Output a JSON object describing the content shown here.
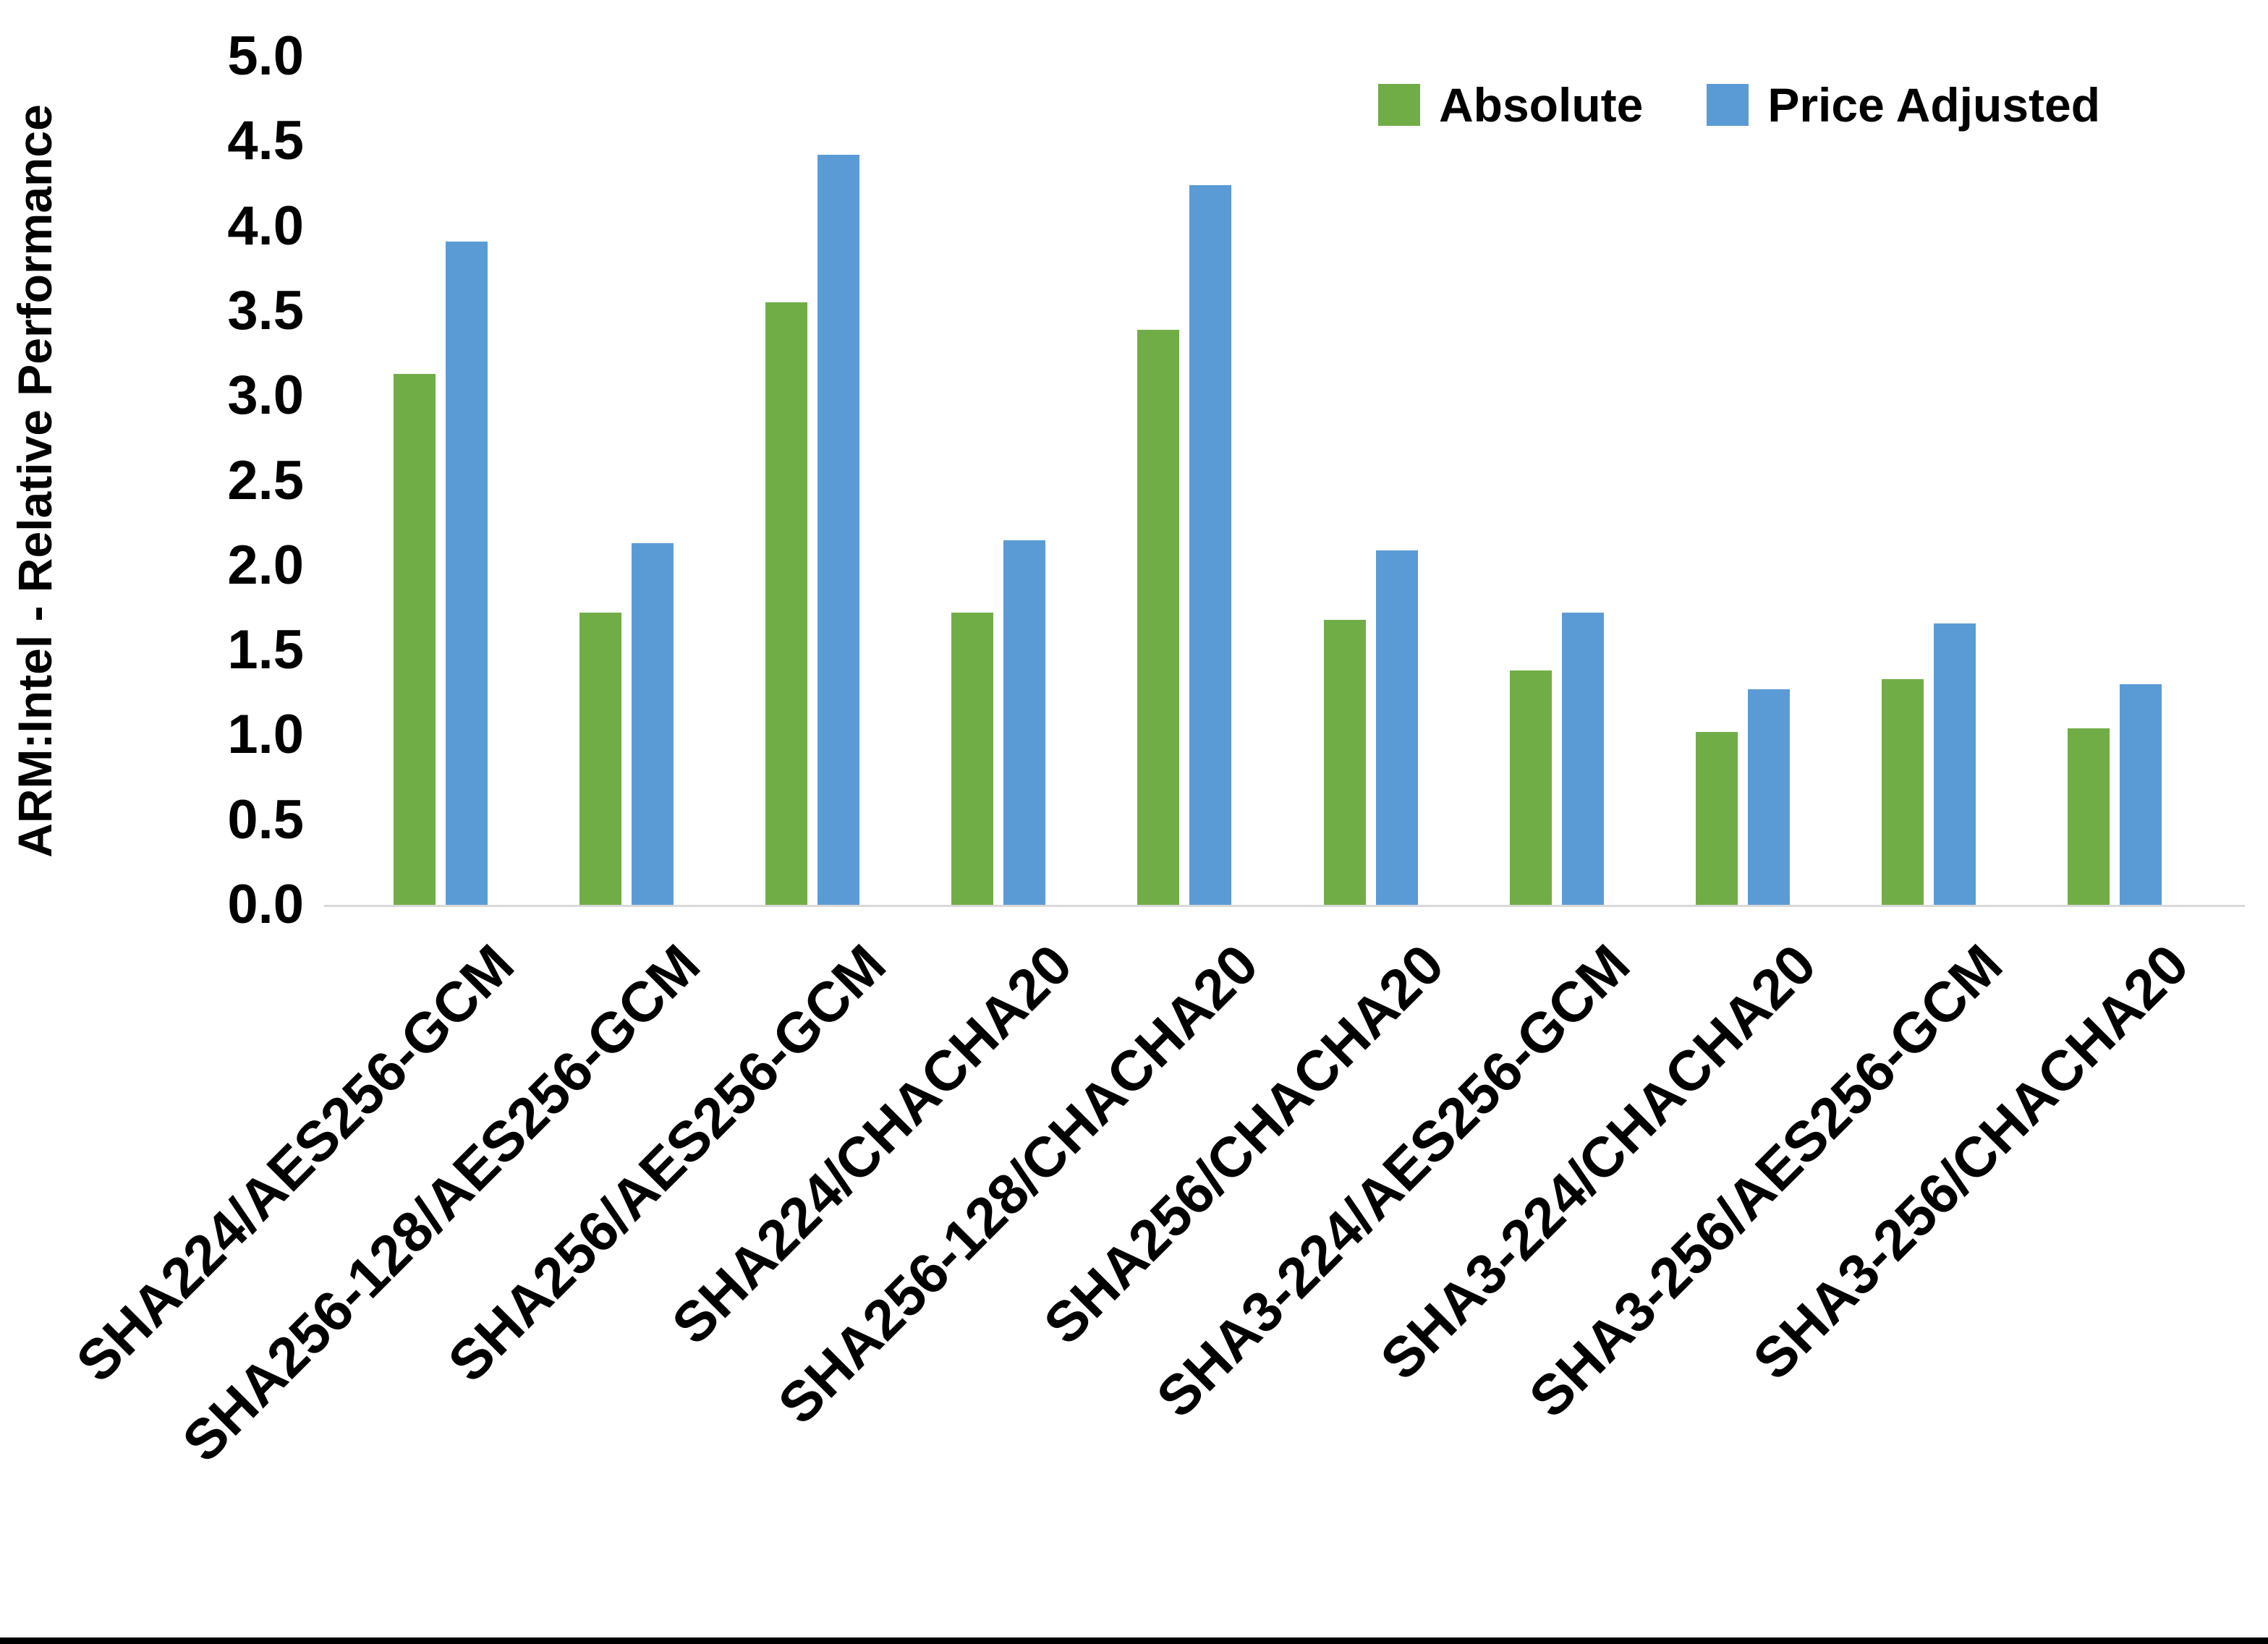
{
  "chart_data": {
    "type": "bar",
    "title": "",
    "xlabel": "",
    "ylabel": "ARM:Intel - Relative Performance",
    "ylim": [
      0.0,
      5.0
    ],
    "y_tick_step": 0.5,
    "y_tick_labels": [
      "5.0",
      "4.5",
      "4.0",
      "3.5",
      "3.0",
      "2.5",
      "2.0",
      "1.5",
      "1.0",
      "0.5",
      "0.0"
    ],
    "grid": false,
    "legend_position": "top-right",
    "categories": [
      "SHA224/AES256-GCM",
      "SHA256-128/AES256-GCM",
      "SHA256/AES256-GCM",
      "SHA224/CHACHA20",
      "SHA256-128/CHACHA20",
      "SHA256/CHACHA20",
      "SHA3-224/AES256-GCM",
      "SHA3-224/CHACHA20",
      "SHA3-256/AES256-GCM",
      "SHA3-256/CHACHA20"
    ],
    "series": [
      {
        "name": "Absolute",
        "color": "#70AD47",
        "values": [
          3.13,
          1.72,
          3.55,
          1.72,
          3.39,
          1.68,
          1.38,
          1.02,
          1.33,
          1.04
        ]
      },
      {
        "name": "Price Adjusted",
        "color": "#5B9BD5",
        "values": [
          3.91,
          2.13,
          4.42,
          2.15,
          4.24,
          2.09,
          1.72,
          1.27,
          1.66,
          1.3
        ]
      }
    ],
    "axis_line_color": "#D9D9D9",
    "background_color": "#FFFFFF",
    "bottom_border_color": "#000000"
  }
}
